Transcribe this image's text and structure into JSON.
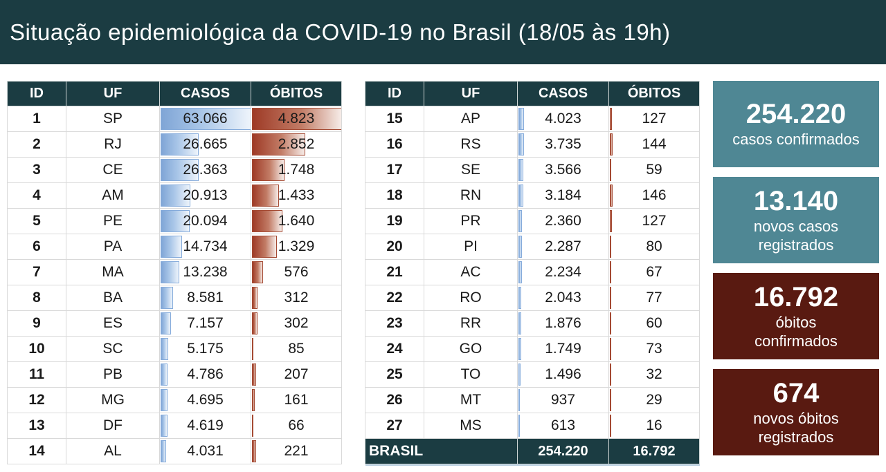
{
  "header": {
    "title": "Situação epidemiológica da COVID-19 no Brasil (18/05 às 19h)"
  },
  "colors": {
    "dark_teal": "#1b3c42",
    "card_teal": "#4f8794",
    "card_red": "#591a11",
    "bar_blue": "#7fa5d6",
    "bar_red": "#9e3a26",
    "grid_line": "#d9d9d9",
    "text": "#1a1a1a"
  },
  "tables": {
    "columns": [
      "ID",
      "UF",
      "CASOS",
      "ÓBITOS"
    ]
  },
  "cards": [
    {
      "value": "254.220",
      "label": "casos confirmados",
      "style": "teal"
    },
    {
      "value": "13.140",
      "label": "novos casos\nregistrados",
      "style": "teal"
    },
    {
      "value": "16.792",
      "label": "óbitos\nconfirmados",
      "style": "red"
    },
    {
      "value": "674",
      "label": "novos óbitos\nregistrados",
      "style": "red"
    }
  ],
  "chart_data": {
    "type": "table",
    "title": "Situação epidemiológica da COVID-19 no Brasil (18/05 às 19h)",
    "columns": [
      "ID",
      "UF",
      "CASOS",
      "ÓBITOS"
    ],
    "rows": [
      [
        1,
        "SP",
        63066,
        4823
      ],
      [
        2,
        "RJ",
        26665,
        2852
      ],
      [
        3,
        "CE",
        26363,
        1748
      ],
      [
        4,
        "AM",
        20913,
        1433
      ],
      [
        5,
        "PE",
        20094,
        1640
      ],
      [
        6,
        "PA",
        14734,
        1329
      ],
      [
        7,
        "MA",
        13238,
        576
      ],
      [
        8,
        "BA",
        8581,
        312
      ],
      [
        9,
        "ES",
        7157,
        302
      ],
      [
        10,
        "SC",
        5175,
        85
      ],
      [
        11,
        "PB",
        4786,
        207
      ],
      [
        12,
        "MG",
        4695,
        161
      ],
      [
        13,
        "DF",
        4619,
        66
      ],
      [
        14,
        "AL",
        4031,
        221
      ],
      [
        15,
        "AP",
        4023,
        127
      ],
      [
        16,
        "RS",
        3735,
        144
      ],
      [
        17,
        "SE",
        3566,
        59
      ],
      [
        18,
        "RN",
        3184,
        146
      ],
      [
        19,
        "PR",
        2360,
        127
      ],
      [
        20,
        "PI",
        2287,
        80
      ],
      [
        21,
        "AC",
        2234,
        67
      ],
      [
        22,
        "RO",
        2043,
        77
      ],
      [
        23,
        "RR",
        1876,
        60
      ],
      [
        24,
        "GO",
        1749,
        73
      ],
      [
        25,
        "TO",
        1496,
        32
      ],
      [
        26,
        "MT",
        937,
        29
      ],
      [
        27,
        "MS",
        613,
        16
      ]
    ],
    "total": {
      "label": "BRASIL",
      "casos": 254220,
      "obitos": 16792
    },
    "bar_scale": {
      "casos_max": 63066,
      "obitos_max": 4823
    },
    "layout": {
      "left_table_rows": [
        1,
        14
      ],
      "right_table_rows": [
        15,
        27
      ]
    },
    "summary": {
      "casos_confirmados": 254220,
      "novos_casos_registrados": 13140,
      "obitos_confirmados": 16792,
      "novos_obitos_registrados": 674
    }
  }
}
